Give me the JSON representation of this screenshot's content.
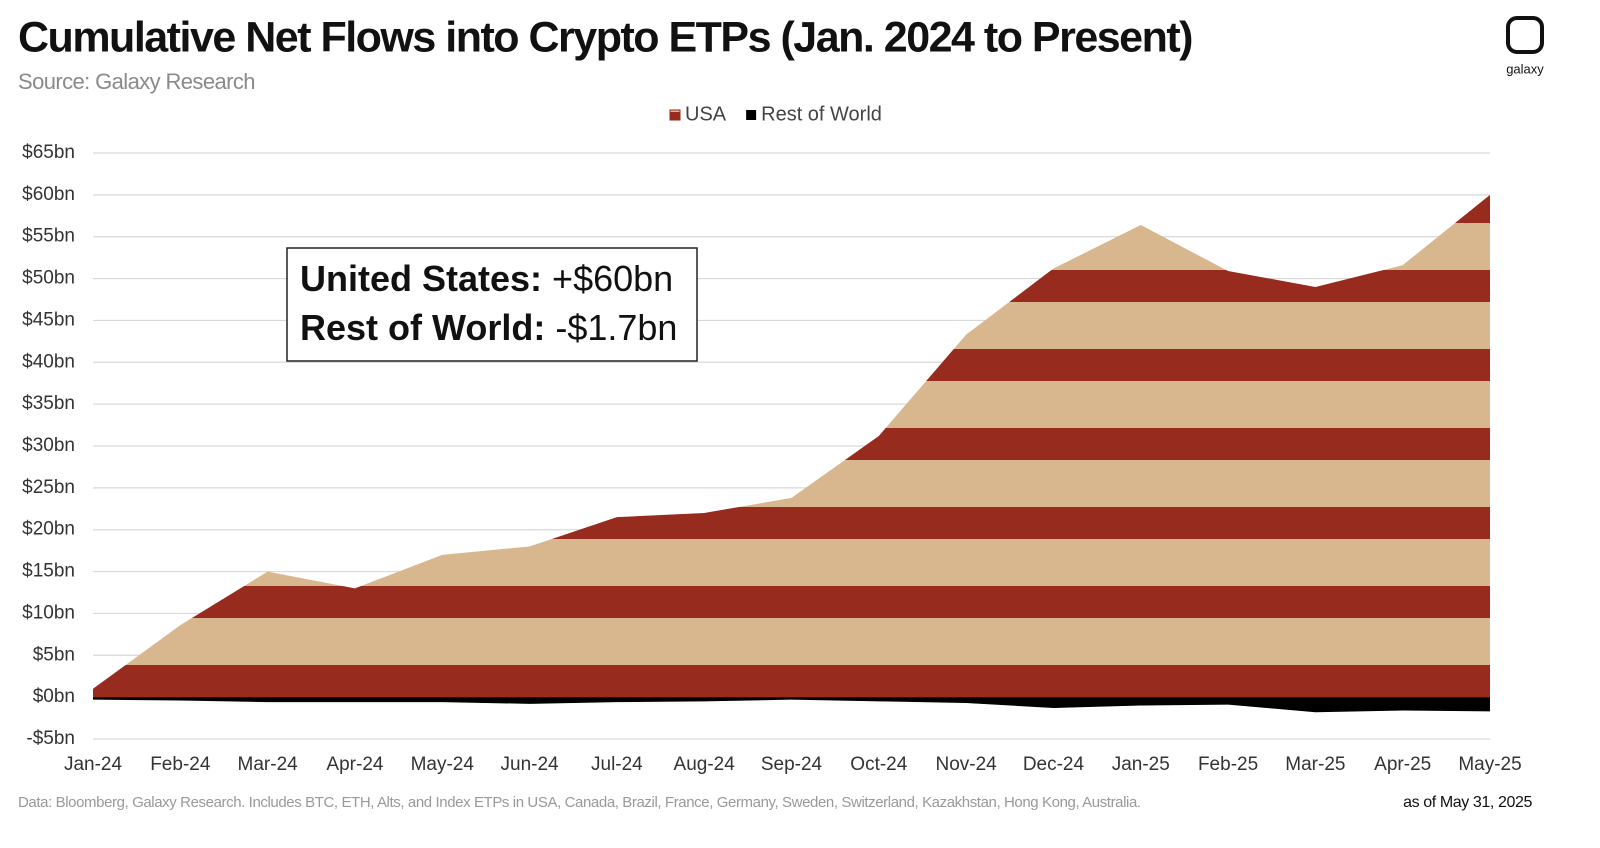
{
  "chart_data": {
    "type": "area",
    "title": "Cumulative Net Flows into Crypto ETPs (Jan. 2024 to Present)",
    "subtitle": "Source: Galaxy Research",
    "logo": "galaxy",
    "categories": [
      "Jan-24",
      "Feb-24",
      "Mar-24",
      "Apr-24",
      "May-24",
      "Jun-24",
      "Jul-24",
      "Aug-24",
      "Sep-24",
      "Oct-24",
      "Nov-24",
      "Dec-24",
      "Jan-25",
      "Feb-25",
      "Mar-25",
      "Apr-25",
      "May-25"
    ],
    "series": [
      {
        "name": "USA",
        "color": "#962b1e",
        "values": [
          1,
          8.6,
          15,
          13,
          17,
          18,
          21.5,
          22,
          23.8,
          31.2,
          43.3,
          51.2,
          56.4,
          50.9,
          49,
          51.6,
          60
        ]
      },
      {
        "name": "Rest of World",
        "color": "#000000",
        "values": [
          -0.3,
          -0.4,
          -0.6,
          -0.6,
          -0.6,
          -0.8,
          -0.6,
          -0.5,
          -0.3,
          -0.5,
          -0.7,
          -1.3,
          -1.0,
          -0.9,
          -1.8,
          -1.6,
          -1.7
        ]
      }
    ],
    "ylim": [
      -5,
      65
    ],
    "yticks": [
      {
        "value": -5,
        "label": "-$5bn"
      },
      {
        "value": 0,
        "label": "$0bn"
      },
      {
        "value": 5,
        "label": "$5bn"
      },
      {
        "value": 10,
        "label": "$10bn"
      },
      {
        "value": 15,
        "label": "$15bn"
      },
      {
        "value": 20,
        "label": "$20bn"
      },
      {
        "value": 25,
        "label": "$25bn"
      },
      {
        "value": 30,
        "label": "$30bn"
      },
      {
        "value": 35,
        "label": "$35bn"
      },
      {
        "value": 40,
        "label": "$40bn"
      },
      {
        "value": 45,
        "label": "$45bn"
      },
      {
        "value": 50,
        "label": "$50bn"
      },
      {
        "value": 55,
        "label": "$55bn"
      },
      {
        "value": 60,
        "label": "$60bn"
      },
      {
        "value": 65,
        "label": "$65bn"
      }
    ],
    "grid": true,
    "legend": "top",
    "annotations": [
      {
        "label": "United States:",
        "text": "+$60bn"
      },
      {
        "label": "Rest of World:",
        "text": "-$1.7bn"
      }
    ],
    "footnote": "Data: Bloomberg, Galaxy Research. Includes BTC, ETH, Alts, and Index ETPs in USA, Canada, Brazil, France, Germany, Sweden, Switzerland, Kazakhstan, Hong Kong, Australia.",
    "date_note": "as of May 31, 2025"
  }
}
